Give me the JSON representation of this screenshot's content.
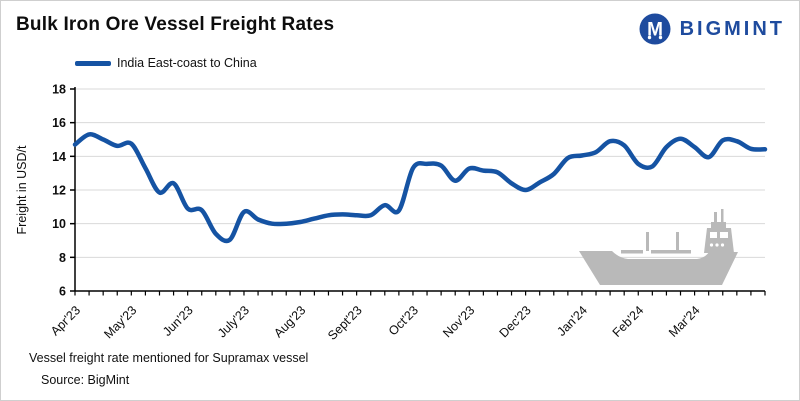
{
  "header": {
    "title": "Bulk Iron Ore Vessel Freight Rates",
    "logo_text": "BIGMINT"
  },
  "legend": {
    "label": "India East-coast to China"
  },
  "footer": {
    "note": "Vessel freight rate mentioned for Supramax vessel",
    "source": "Source:  BigMint"
  },
  "colors": {
    "line": "#1553a3",
    "logo_blue": "#1e4b9e",
    "grid": "#d9d9d9",
    "axis": "#000000",
    "text": "#0d0d0d",
    "ship_gray": "#b9b9b9"
  },
  "chart_data": {
    "type": "line",
    "title": "Bulk Iron Ore Vessel Freight Rates",
    "ylabel": "Freight  in USD/t",
    "xlabel": "",
    "ylim": [
      6,
      18
    ],
    "y_ticks": [
      6,
      8,
      10,
      12,
      14,
      16,
      18
    ],
    "grid": "horizontal",
    "legend_position": "top-left",
    "frequency": "weekly",
    "x_tick_labels": [
      "Apr'23",
      "May'23",
      "Jun'23",
      "July'23",
      "Aug'23",
      "Sept'23",
      "Oct'23",
      "Nov'23",
      "Dec'23",
      "Jan'24",
      "Feb'24",
      "Mar'24"
    ],
    "x_tick_indices": [
      0,
      4,
      8,
      12,
      16,
      20,
      24,
      28,
      32,
      36,
      40,
      44
    ],
    "series": [
      {
        "name": "India East-coast to China",
        "values": [
          14.7,
          15.3,
          15.0,
          14.62,
          14.75,
          13.3,
          11.85,
          12.4,
          10.9,
          10.8,
          9.4,
          9.05,
          10.7,
          10.25,
          10.0,
          10.0,
          10.1,
          10.3,
          10.5,
          10.55,
          10.5,
          10.5,
          11.1,
          10.78,
          13.3,
          13.55,
          13.45,
          12.55,
          13.28,
          13.15,
          13.05,
          12.4,
          12.0,
          12.45,
          12.95,
          13.9,
          14.05,
          14.25,
          14.9,
          14.65,
          13.55,
          13.4,
          14.55,
          15.05,
          14.55,
          13.95,
          14.95,
          14.9,
          14.45,
          14.42
        ]
      }
    ]
  }
}
